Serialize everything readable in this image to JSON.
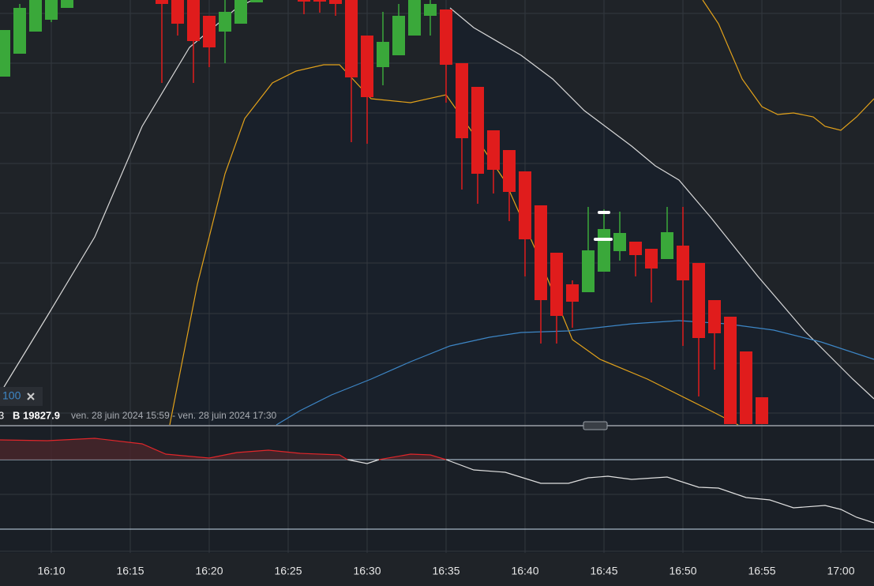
{
  "legend": {
    "period": "100",
    "prefix": "3",
    "bid": "B 19827.9",
    "range": "ven. 28 juin 2024 15:59 - ven. 28 juin 2024 17:30"
  },
  "time_axis": {
    "labels": [
      "16:10",
      "16:15",
      "16:20",
      "16:25",
      "16:30",
      "16:35",
      "16:40",
      "16:45",
      "16:50",
      "16:55",
      "17:00"
    ]
  }
}
